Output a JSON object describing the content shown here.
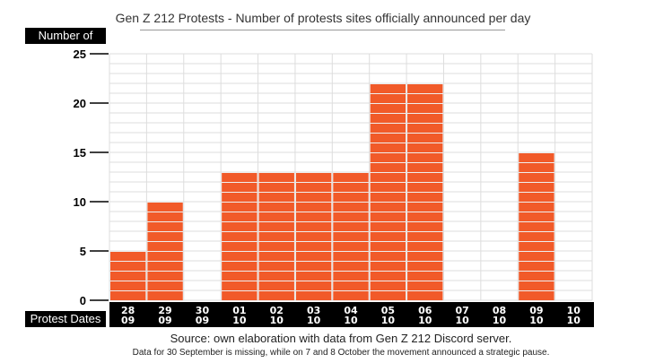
{
  "chart_data": {
    "type": "bar",
    "title": "Gen Z 212 Protests - Number of protests sites officially announced per day",
    "ylabel": "Number of sites",
    "xlabel": "Protest Dates",
    "ylim": [
      0,
      25
    ],
    "yticks": [
      0,
      5,
      10,
      15,
      20,
      25
    ],
    "categories": [
      [
        "28",
        "09"
      ],
      [
        "29",
        "09"
      ],
      [
        "30",
        "09"
      ],
      [
        "01",
        "10"
      ],
      [
        "02",
        "10"
      ],
      [
        "03",
        "10"
      ],
      [
        "04",
        "10"
      ],
      [
        "05",
        "10"
      ],
      [
        "06",
        "10"
      ],
      [
        "07",
        "10"
      ],
      [
        "08",
        "10"
      ],
      [
        "09",
        "10"
      ],
      [
        "10",
        "10"
      ]
    ],
    "values": [
      5,
      10,
      0,
      13,
      13,
      13,
      13,
      22,
      22,
      0,
      0,
      15,
      0
    ],
    "bar_color": "#f15a29",
    "grid": true
  },
  "source": "Source: own elaboration with data from Gen Z 212 Discord server.",
  "note": "Data for 30 September is missing, while on 7 and 8 October the movement announced a strategic pause."
}
